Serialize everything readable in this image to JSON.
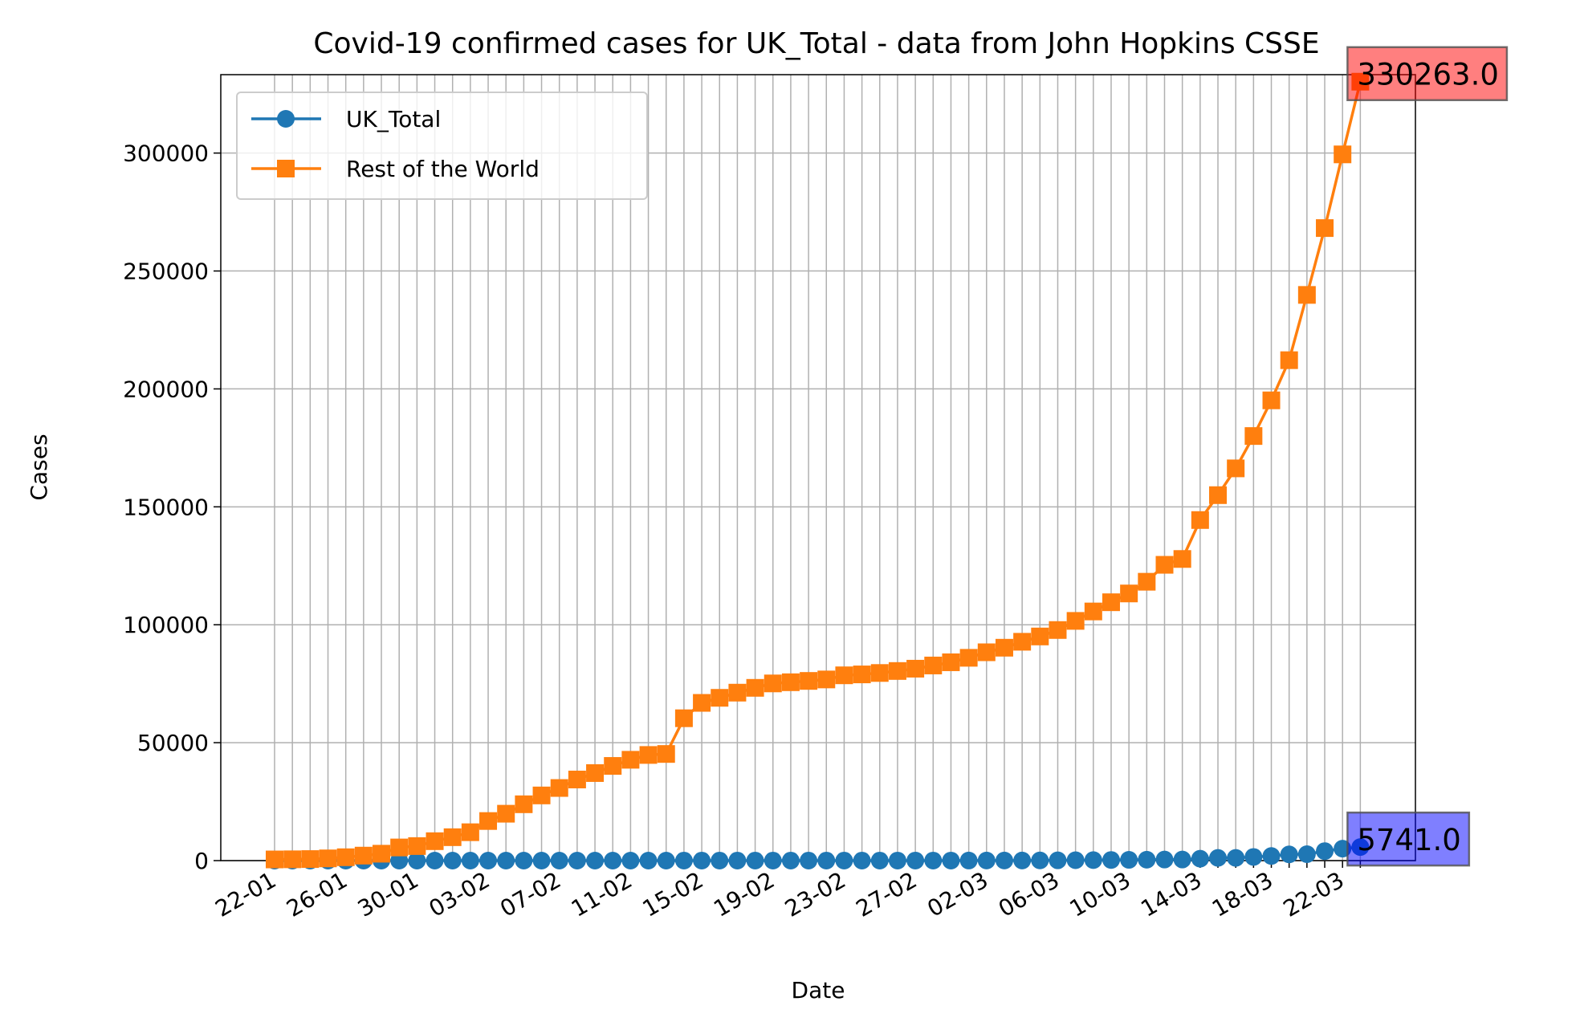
{
  "chart_data": {
    "type": "line",
    "title": "Covid-19 confirmed cases for UK_Total - data from John Hopkins CSSE",
    "x_label": "Date",
    "y_label": "Cases",
    "categories": [
      "22-01",
      null,
      null,
      null,
      "26-01",
      null,
      null,
      null,
      "30-01",
      null,
      null,
      null,
      "03-02",
      null,
      null,
      null,
      "07-02",
      null,
      null,
      null,
      "11-02",
      null,
      null,
      null,
      "15-02",
      null,
      null,
      null,
      "19-02",
      null,
      null,
      null,
      "23-02",
      null,
      null,
      null,
      "27-02",
      null,
      null,
      null,
      "02-03",
      null,
      null,
      null,
      "06-03",
      null,
      null,
      null,
      "10-03",
      null,
      null,
      null,
      "14-03",
      null,
      null,
      null,
      "18-03",
      null,
      null,
      null,
      "22-03",
      null
    ],
    "series": [
      {
        "name": "UK_Total",
        "color": "#1f77b4",
        "marker": "circle",
        "end_label": "5741.0",
        "end_label_color": "rgba(0,0,255,0.5)",
        "values": [
          0,
          0,
          0,
          0,
          0,
          0,
          0,
          0,
          0,
          0,
          2,
          2,
          2,
          2,
          2,
          2,
          3,
          3,
          3,
          3,
          8,
          8,
          8,
          9,
          9,
          9,
          9,
          9,
          9,
          9,
          9,
          9,
          9,
          9,
          9,
          13,
          13,
          15,
          20,
          23,
          36,
          40,
          51,
          86,
          116,
          164,
          207,
          274,
          322,
          384,
          459,
          459,
          802,
          1144,
          1145,
          1551,
          1960,
          2642,
          2716,
          4014,
          5067,
          5741
        ]
      },
      {
        "name": "Rest of the World",
        "color": "#ff7f0e",
        "marker": "square",
        "end_label": "330263.0",
        "end_label_color": "rgba(255,0,0,0.5)",
        "values": [
          500,
          555,
          654,
          941,
          1434,
          2118,
          2927,
          5578,
          6166,
          8234,
          9925,
          12036,
          16785,
          19879,
          23890,
          27633,
          30791,
          34388,
          37117,
          40147,
          42754,
          44794,
          45213,
          60359,
          66876,
          69021,
          71215,
          73249,
          75127,
          75630,
          76188,
          76810,
          78563,
          78949,
          79552,
          80393,
          81375,
          82731,
          84092,
          85988,
          88333,
          90266,
          92789,
          95034,
          97770,
          101637,
          105640,
          109547,
          113268,
          118236,
          125416,
          127893,
          144403,
          154957,
          166309,
          180023,
          195142,
          212179,
          239854,
          268194,
          299440,
          330263
        ]
      }
    ],
    "ylim": [
      0,
      333240
    ],
    "yticks": [
      0,
      50000,
      100000,
      150000,
      200000,
      250000,
      300000
    ],
    "grid": true,
    "legend": "upper left"
  }
}
